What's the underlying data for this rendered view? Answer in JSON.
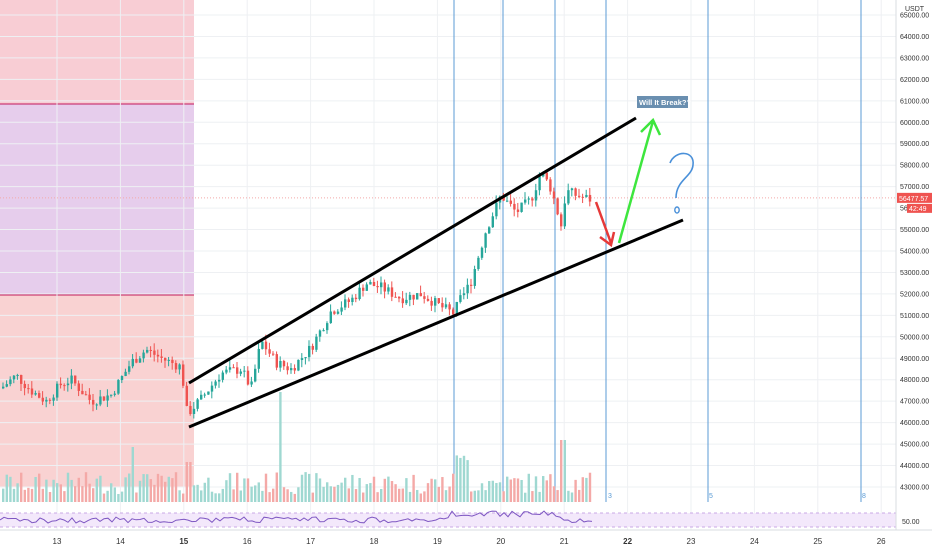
{
  "chart_data": {
    "type": "candlestick",
    "symbol_currency": "USDT",
    "price_axis_ticks": [
      43000,
      44000,
      45000,
      46000,
      47000,
      48000,
      49000,
      50000,
      51000,
      52000,
      53000,
      54000,
      55000,
      56000,
      57000,
      58000,
      59000,
      60000,
      61000,
      62000,
      63000,
      64000,
      65000
    ],
    "price_axis_labels": [
      "43000.00",
      "44000.00",
      "45000.00",
      "46000.00",
      "47000.00",
      "48000.00",
      "49000.00",
      "50000.00",
      "51000.00",
      "52000.00",
      "53000.00",
      "54000.00",
      "55000.00",
      "56000.00",
      "57000.00",
      "58000.00",
      "59000.00",
      "60000.00",
      "61000.00",
      "62000.00",
      "63000.00",
      "64000.00",
      "65000.00"
    ],
    "ylim": [
      42300,
      65700
    ],
    "date_ticks": [
      "13",
      "14",
      "15",
      "16",
      "17",
      "18",
      "19",
      "20",
      "21",
      "22",
      "23",
      "24",
      "25",
      "26"
    ],
    "bold_date_ticks": [
      "15",
      "22"
    ],
    "current_price": "56477.57",
    "countdown": "42:49",
    "annotation_text": "Will It Break??",
    "question_mark": "?",
    "cycle_labels": [
      "3",
      "5",
      "8"
    ],
    "rsi_level": "50.00",
    "colors": {
      "up": "#26a69a",
      "down": "#ef5350",
      "zone_top": "#f8cdd4",
      "zone_mid": "#e6cdec",
      "zone_bottom": "#f9d2d2",
      "cycle_line": "#5b9bd5",
      "channel": "#000000",
      "arrow_up": "#3ee63e",
      "arrow_down": "#e63939",
      "question": "#4a90d9",
      "rsi_line": "#7e57c2",
      "rsi_band": "#f3e8fb",
      "price_badge": "#ef5350"
    }
  }
}
